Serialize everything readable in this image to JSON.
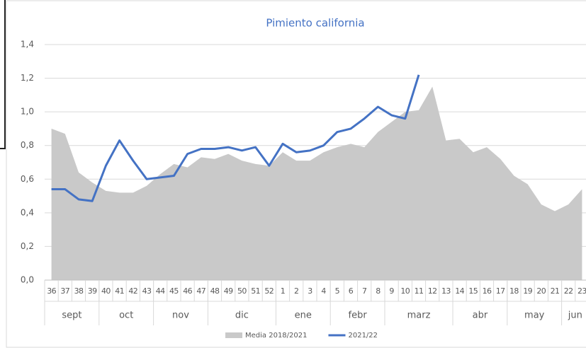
{
  "chart_data": {
    "type": "area-line",
    "title": "Pimiento california",
    "category_groups": [
      {
        "label": "sept",
        "categories": [
          "36",
          "37",
          "38",
          "39"
        ]
      },
      {
        "label": "oct",
        "categories": [
          "40",
          "41",
          "42",
          "43"
        ]
      },
      {
        "label": "nov",
        "categories": [
          "44",
          "45",
          "46",
          "47"
        ]
      },
      {
        "label": "dic",
        "categories": [
          "48",
          "49",
          "50",
          "51",
          "52"
        ]
      },
      {
        "label": "ene",
        "categories": [
          "1",
          "2",
          "3",
          "4"
        ]
      },
      {
        "label": "febr",
        "categories": [
          "5",
          "6",
          "7",
          "8"
        ]
      },
      {
        "label": "marz",
        "categories": [
          "9",
          "10",
          "11",
          "12",
          "13"
        ]
      },
      {
        "label": "abr",
        "categories": [
          "14",
          "15",
          "16",
          "17"
        ]
      },
      {
        "label": "may",
        "categories": [
          "18",
          "19",
          "20",
          "21"
        ]
      },
      {
        "label": "jun",
        "categories": [
          "22",
          "23"
        ]
      }
    ],
    "series": [
      {
        "name": "Media 2018/2021",
        "type": "area",
        "color": "#c9c9c9",
        "values": [
          0.9,
          0.87,
          0.64,
          0.58,
          0.53,
          0.52,
          0.52,
          0.56,
          0.63,
          0.69,
          0.67,
          0.73,
          0.72,
          0.75,
          0.71,
          0.69,
          0.68,
          0.76,
          0.71,
          0.71,
          0.76,
          0.79,
          0.81,
          0.79,
          0.88,
          0.94,
          1.0,
          1.01,
          1.15,
          0.83,
          0.84,
          0.76,
          0.79,
          0.72,
          0.62,
          0.57,
          0.45,
          0.41,
          0.45,
          0.54
        ]
      },
      {
        "name": "2021/22",
        "type": "line",
        "color": "#4472c4",
        "values": [
          0.54,
          0.54,
          0.48,
          0.47,
          0.68,
          0.83,
          0.71,
          0.6,
          0.61,
          0.62,
          0.75,
          0.78,
          0.78,
          0.79,
          0.77,
          0.79,
          0.68,
          0.81,
          0.76,
          0.77,
          0.8,
          0.88,
          0.9,
          0.96,
          1.03,
          0.98,
          0.96,
          1.22,
          null,
          null,
          null,
          null,
          null,
          null,
          null,
          null,
          null,
          null,
          null,
          null
        ]
      }
    ],
    "ylim": [
      0,
      1.4
    ],
    "yticks": [
      {
        "value": 0,
        "label": "0,0"
      },
      {
        "value": 0.2,
        "label": "0,2"
      },
      {
        "value": 0.4,
        "label": "0,4"
      },
      {
        "value": 0.6,
        "label": "0,6"
      },
      {
        "value": 0.8,
        "label": "0,8"
      },
      {
        "value": 1.0,
        "label": "1,0"
      },
      {
        "value": 1.2,
        "label": "1,2"
      },
      {
        "value": 1.4,
        "label": "1,4"
      }
    ],
    "grid": true,
    "legend": "bottom"
  }
}
